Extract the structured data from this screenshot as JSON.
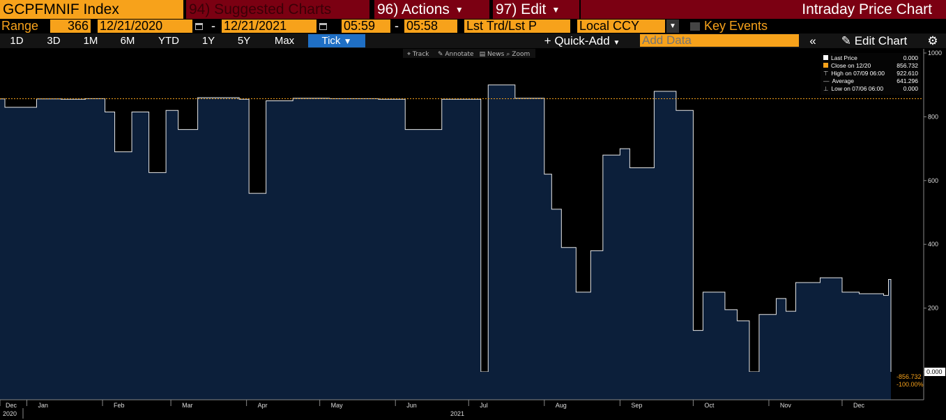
{
  "header": {
    "ticker": "GCPFMNIF Index",
    "suggested": "94) Suggested Charts",
    "actions": "96) Actions",
    "edit": "97) Edit",
    "title": "Intraday Price Chart"
  },
  "range": {
    "label": "Range",
    "days": "366",
    "start_date": "12/21/2020",
    "end_date": "12/21/2021",
    "start_time": "05:59",
    "end_time": "05:58",
    "trade_type": "Lst Trd/Lst P",
    "currency": "Local CCY",
    "key_events": "Key Events"
  },
  "periods": [
    "1D",
    "3D",
    "1M",
    "6M",
    "YTD",
    "1Y",
    "5Y",
    "Max"
  ],
  "tick_label": "Tick",
  "quick_add": "Quick-Add",
  "add_data_placeholder": "Add Data",
  "edit_chart": "Edit Chart",
  "tools": [
    "Track",
    "Annotate",
    "News",
    "Zoom"
  ],
  "legend": [
    {
      "label": "Last Price",
      "value": "0.000"
    },
    {
      "label": "Close on 12/20",
      "value": "856.732"
    },
    {
      "label": "High on 07/09 06:00",
      "value": "922.610"
    },
    {
      "label": "Average",
      "value": "641.296"
    },
    {
      "label": "Low on 07/06 06:00",
      "value": "0.000"
    }
  ],
  "last_price_tag": "0.000",
  "change_tag": "-856.732",
  "change_pct_tag": "-100.00%",
  "colors": {
    "accent": "#f7a21b",
    "header_red": "#7b0012",
    "area": "#0c1f3a",
    "tick_blue": "#1f6fc5"
  },
  "chart_data": {
    "type": "area",
    "ylim": [
      0,
      1000
    ],
    "yticks": [
      0,
      200,
      400,
      600,
      800,
      1000
    ],
    "ytick_labels": [
      "0.000",
      "200",
      "400",
      "600",
      "800",
      "1000"
    ],
    "xtick_labels": [
      "Dec",
      "Jan",
      "Feb",
      "Mar",
      "Apr",
      "May",
      "Jun",
      "Jul",
      "Aug",
      "Sep",
      "Oct",
      "Nov",
      "Dec"
    ],
    "year_labels": [
      "2020",
      "2021"
    ],
    "reference_line": 856.732,
    "x": [
      "2020-12-21",
      "2020-12-23",
      "2021-01-05",
      "2021-01-15",
      "2021-01-25",
      "2021-02-02",
      "2021-02-06",
      "2021-02-13",
      "2021-02-20",
      "2021-02-27",
      "2021-03-04",
      "2021-03-12",
      "2021-03-22",
      "2021-03-29",
      "2021-04-02",
      "2021-04-09",
      "2021-04-20",
      "2021-05-05",
      "2021-05-25",
      "2021-06-05",
      "2021-06-20",
      "2021-07-01",
      "2021-07-06",
      "2021-07-09",
      "2021-07-20",
      "2021-08-01",
      "2021-08-04",
      "2021-08-08",
      "2021-08-14",
      "2021-08-20",
      "2021-08-25",
      "2021-09-01",
      "2021-09-05",
      "2021-09-15",
      "2021-09-24",
      "2021-10-01",
      "2021-10-05",
      "2021-10-14",
      "2021-10-19",
      "2021-10-24",
      "2021-10-28",
      "2021-11-04",
      "2021-11-08",
      "2021-11-12",
      "2021-11-22",
      "2021-12-01",
      "2021-12-08",
      "2021-12-15",
      "2021-12-18",
      "2021-12-20",
      "2021-12-21"
    ],
    "y": [
      856,
      830,
      856,
      855,
      857,
      815,
      690,
      815,
      625,
      820,
      760,
      860,
      860,
      855,
      560,
      850,
      858,
      857,
      855,
      760,
      855,
      855,
      0,
      900,
      858,
      620,
      510,
      390,
      250,
      380,
      680,
      700,
      640,
      880,
      820,
      130,
      250,
      195,
      160,
      0,
      180,
      230,
      190,
      280,
      295,
      250,
      245,
      245,
      240,
      290,
      0
    ]
  }
}
